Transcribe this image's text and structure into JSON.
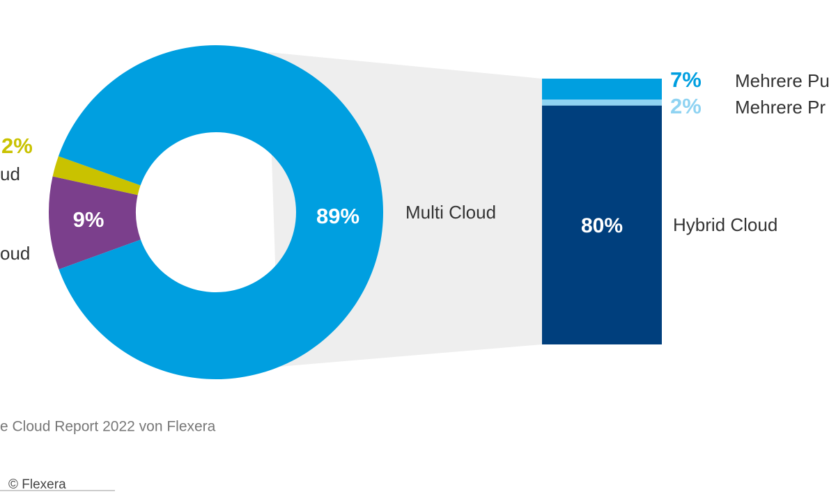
{
  "chart_data": {
    "type": "pie",
    "categories": [
      "oud",
      "ud",
      "Multi Cloud"
    ],
    "values": [
      9,
      2,
      89
    ],
    "value_labels": [
      "9%",
      "2%",
      "89%"
    ],
    "colors": [
      "#7b3f8c",
      "#c9c200",
      "#009fe0"
    ],
    "breakout": {
      "type": "bar",
      "categories": [
        "Hybrid Cloud",
        "Mehrere Pr",
        "Mehrere Pu"
      ],
      "values": [
        80,
        2,
        7
      ],
      "value_labels": [
        "80%",
        "2%",
        "7%"
      ],
      "colors": [
        "#003f7d",
        "#8fd3f2",
        "#009fe0"
      ]
    }
  },
  "source": "e Cloud Report 2022 von Flexera",
  "credit": "© Flexera"
}
